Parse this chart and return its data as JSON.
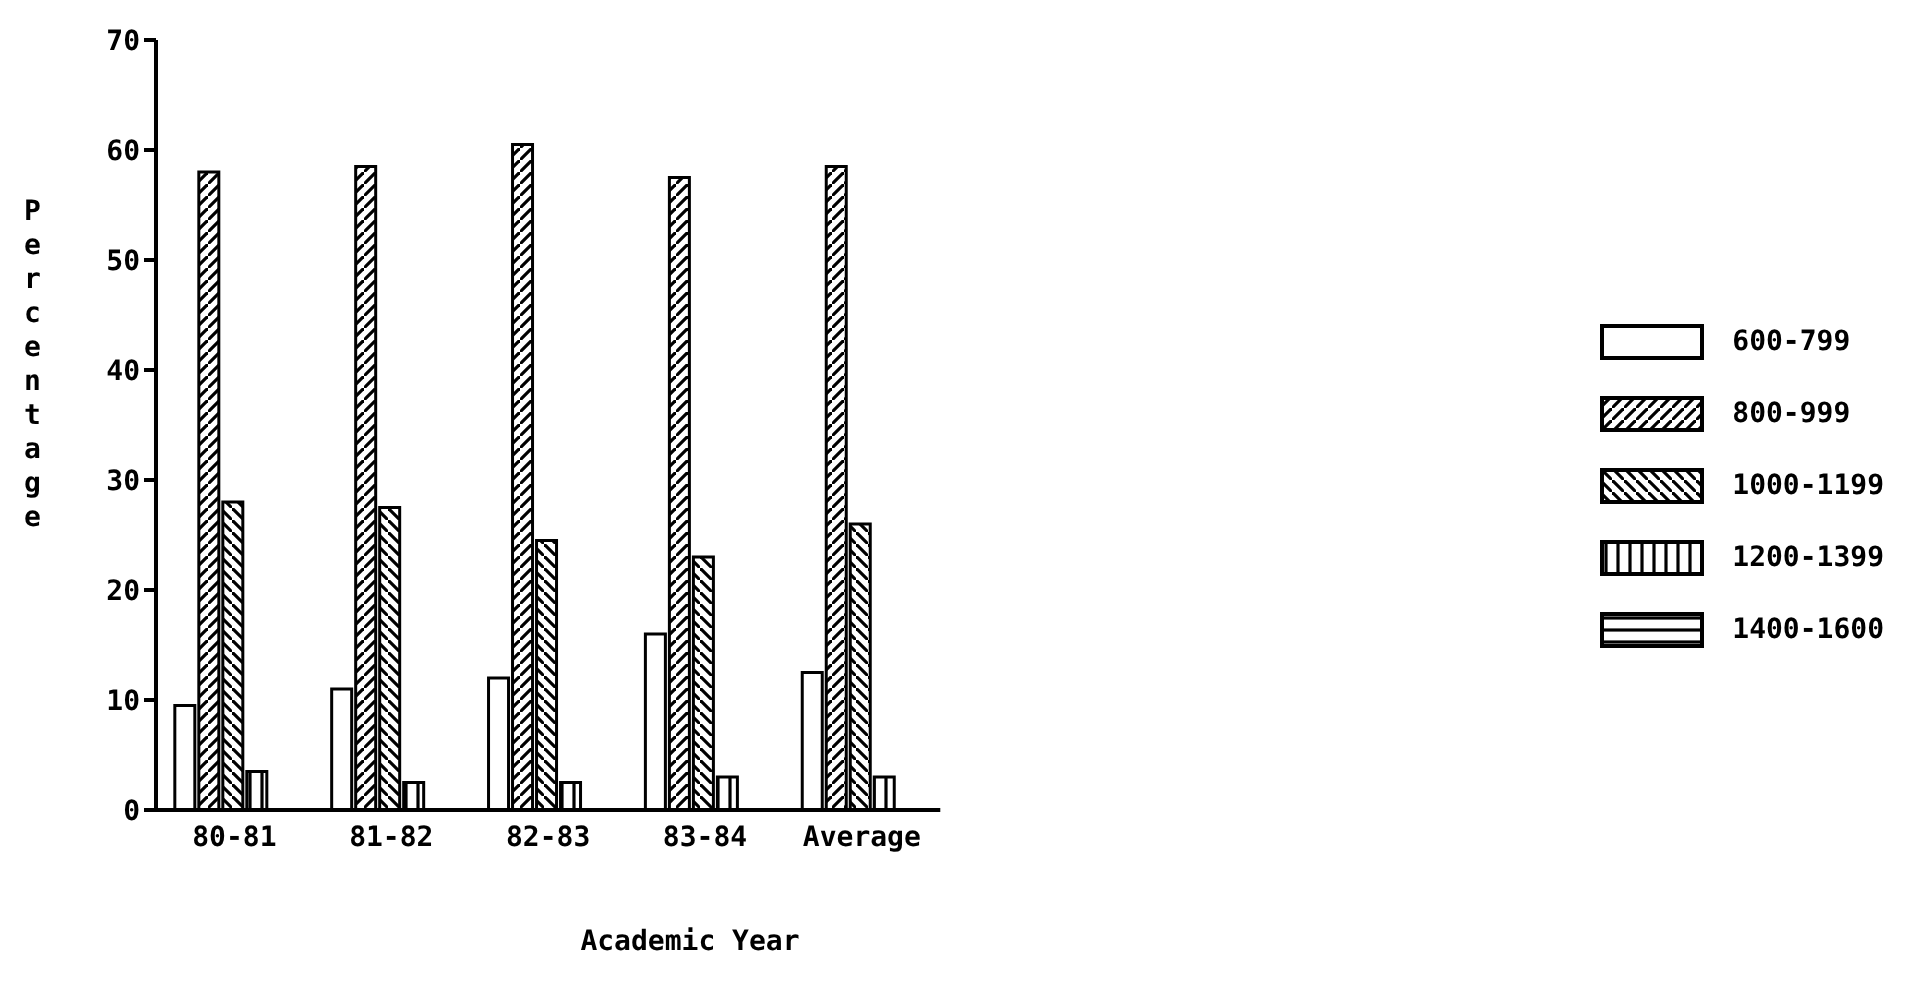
{
  "chart_data": {
    "type": "bar",
    "xlabel": "Academic Year",
    "ylabel": "Percentage",
    "categories": [
      "80-81",
      "81-82",
      "82-83",
      "83-84",
      "Average"
    ],
    "series": [
      {
        "name": "600-799",
        "color": "#ffffff",
        "values": [
          9.5,
          11,
          12,
          16,
          12.5
        ]
      },
      {
        "name": "800-999",
        "color": "#000000",
        "values": [
          58,
          58.5,
          60.5,
          57.5,
          58.5
        ]
      },
      {
        "name": "1000-1199",
        "color": "#000000",
        "values": [
          28,
          27.5,
          24.5,
          23,
          26
        ]
      },
      {
        "name": "1200-1399",
        "color": "#000000",
        "values": [
          3.5,
          2.5,
          2.5,
          3,
          3
        ]
      },
      {
        "name": "1400-1600",
        "color": "#000000",
        "values": [
          0,
          0,
          0,
          0,
          0
        ]
      }
    ],
    "ylim": [
      0,
      70
    ],
    "yticks": [
      0,
      10,
      20,
      30,
      40,
      50,
      60,
      70
    ],
    "legend": "right"
  }
}
